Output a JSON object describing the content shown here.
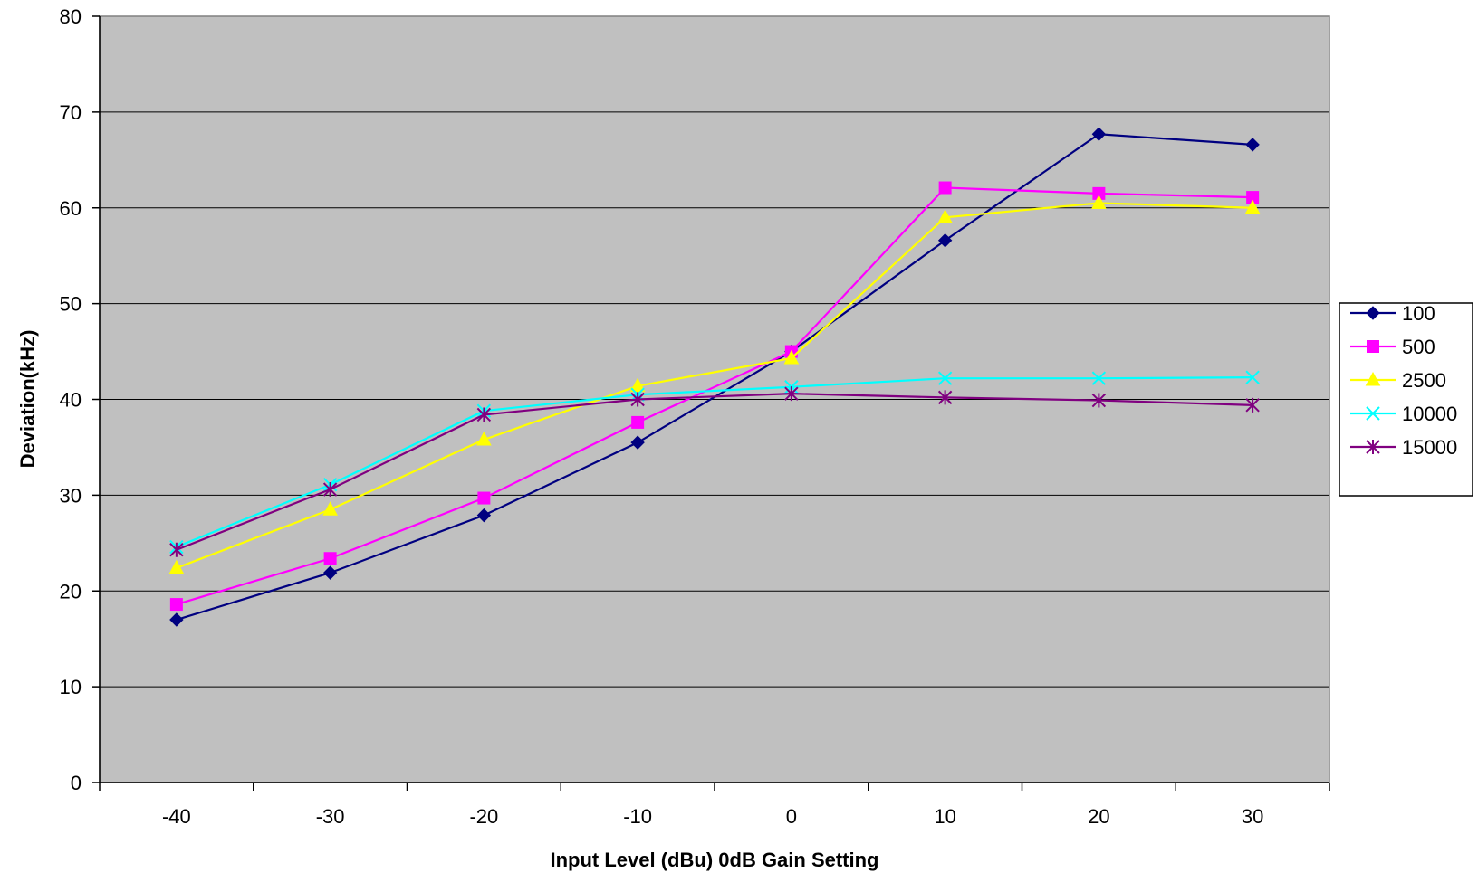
{
  "chart_data": {
    "type": "line",
    "title": "",
    "xlabel": "Input Level (dBu) 0dB Gain Setting",
    "ylabel": "Deviation(kHz)",
    "categories": [
      "-40",
      "-30",
      "-20",
      "-10",
      "0",
      "10",
      "20",
      "30"
    ],
    "ylim": [
      0,
      80
    ],
    "yticks": [
      "0",
      "10",
      "20",
      "30",
      "40",
      "50",
      "60",
      "70",
      "80"
    ],
    "grid": "horizontal",
    "legend_position": "right",
    "plot_background": "#C0C0C0",
    "series": [
      {
        "name": "100",
        "color": "#000080",
        "marker": "diamond",
        "values": [
          17.0,
          21.9,
          27.9,
          35.5,
          45.0,
          56.6,
          67.7,
          66.6
        ]
      },
      {
        "name": "500",
        "color": "#FF00FF",
        "marker": "square",
        "values": [
          18.6,
          23.4,
          29.7,
          37.6,
          45.0,
          62.1,
          61.5,
          61.1
        ]
      },
      {
        "name": "2500",
        "color": "#FFFF00",
        "marker": "triangle",
        "values": [
          22.4,
          28.5,
          35.8,
          41.4,
          44.3,
          59.0,
          60.5,
          60.0
        ]
      },
      {
        "name": "10000",
        "color": "#00FFFF",
        "marker": "x",
        "values": [
          24.6,
          31.1,
          38.8,
          40.5,
          41.3,
          42.2,
          42.2,
          42.3
        ]
      },
      {
        "name": "15000",
        "color": "#800080",
        "marker": "star",
        "values": [
          24.3,
          30.6,
          38.4,
          40.0,
          40.6,
          40.2,
          39.9,
          39.4
        ]
      }
    ]
  }
}
